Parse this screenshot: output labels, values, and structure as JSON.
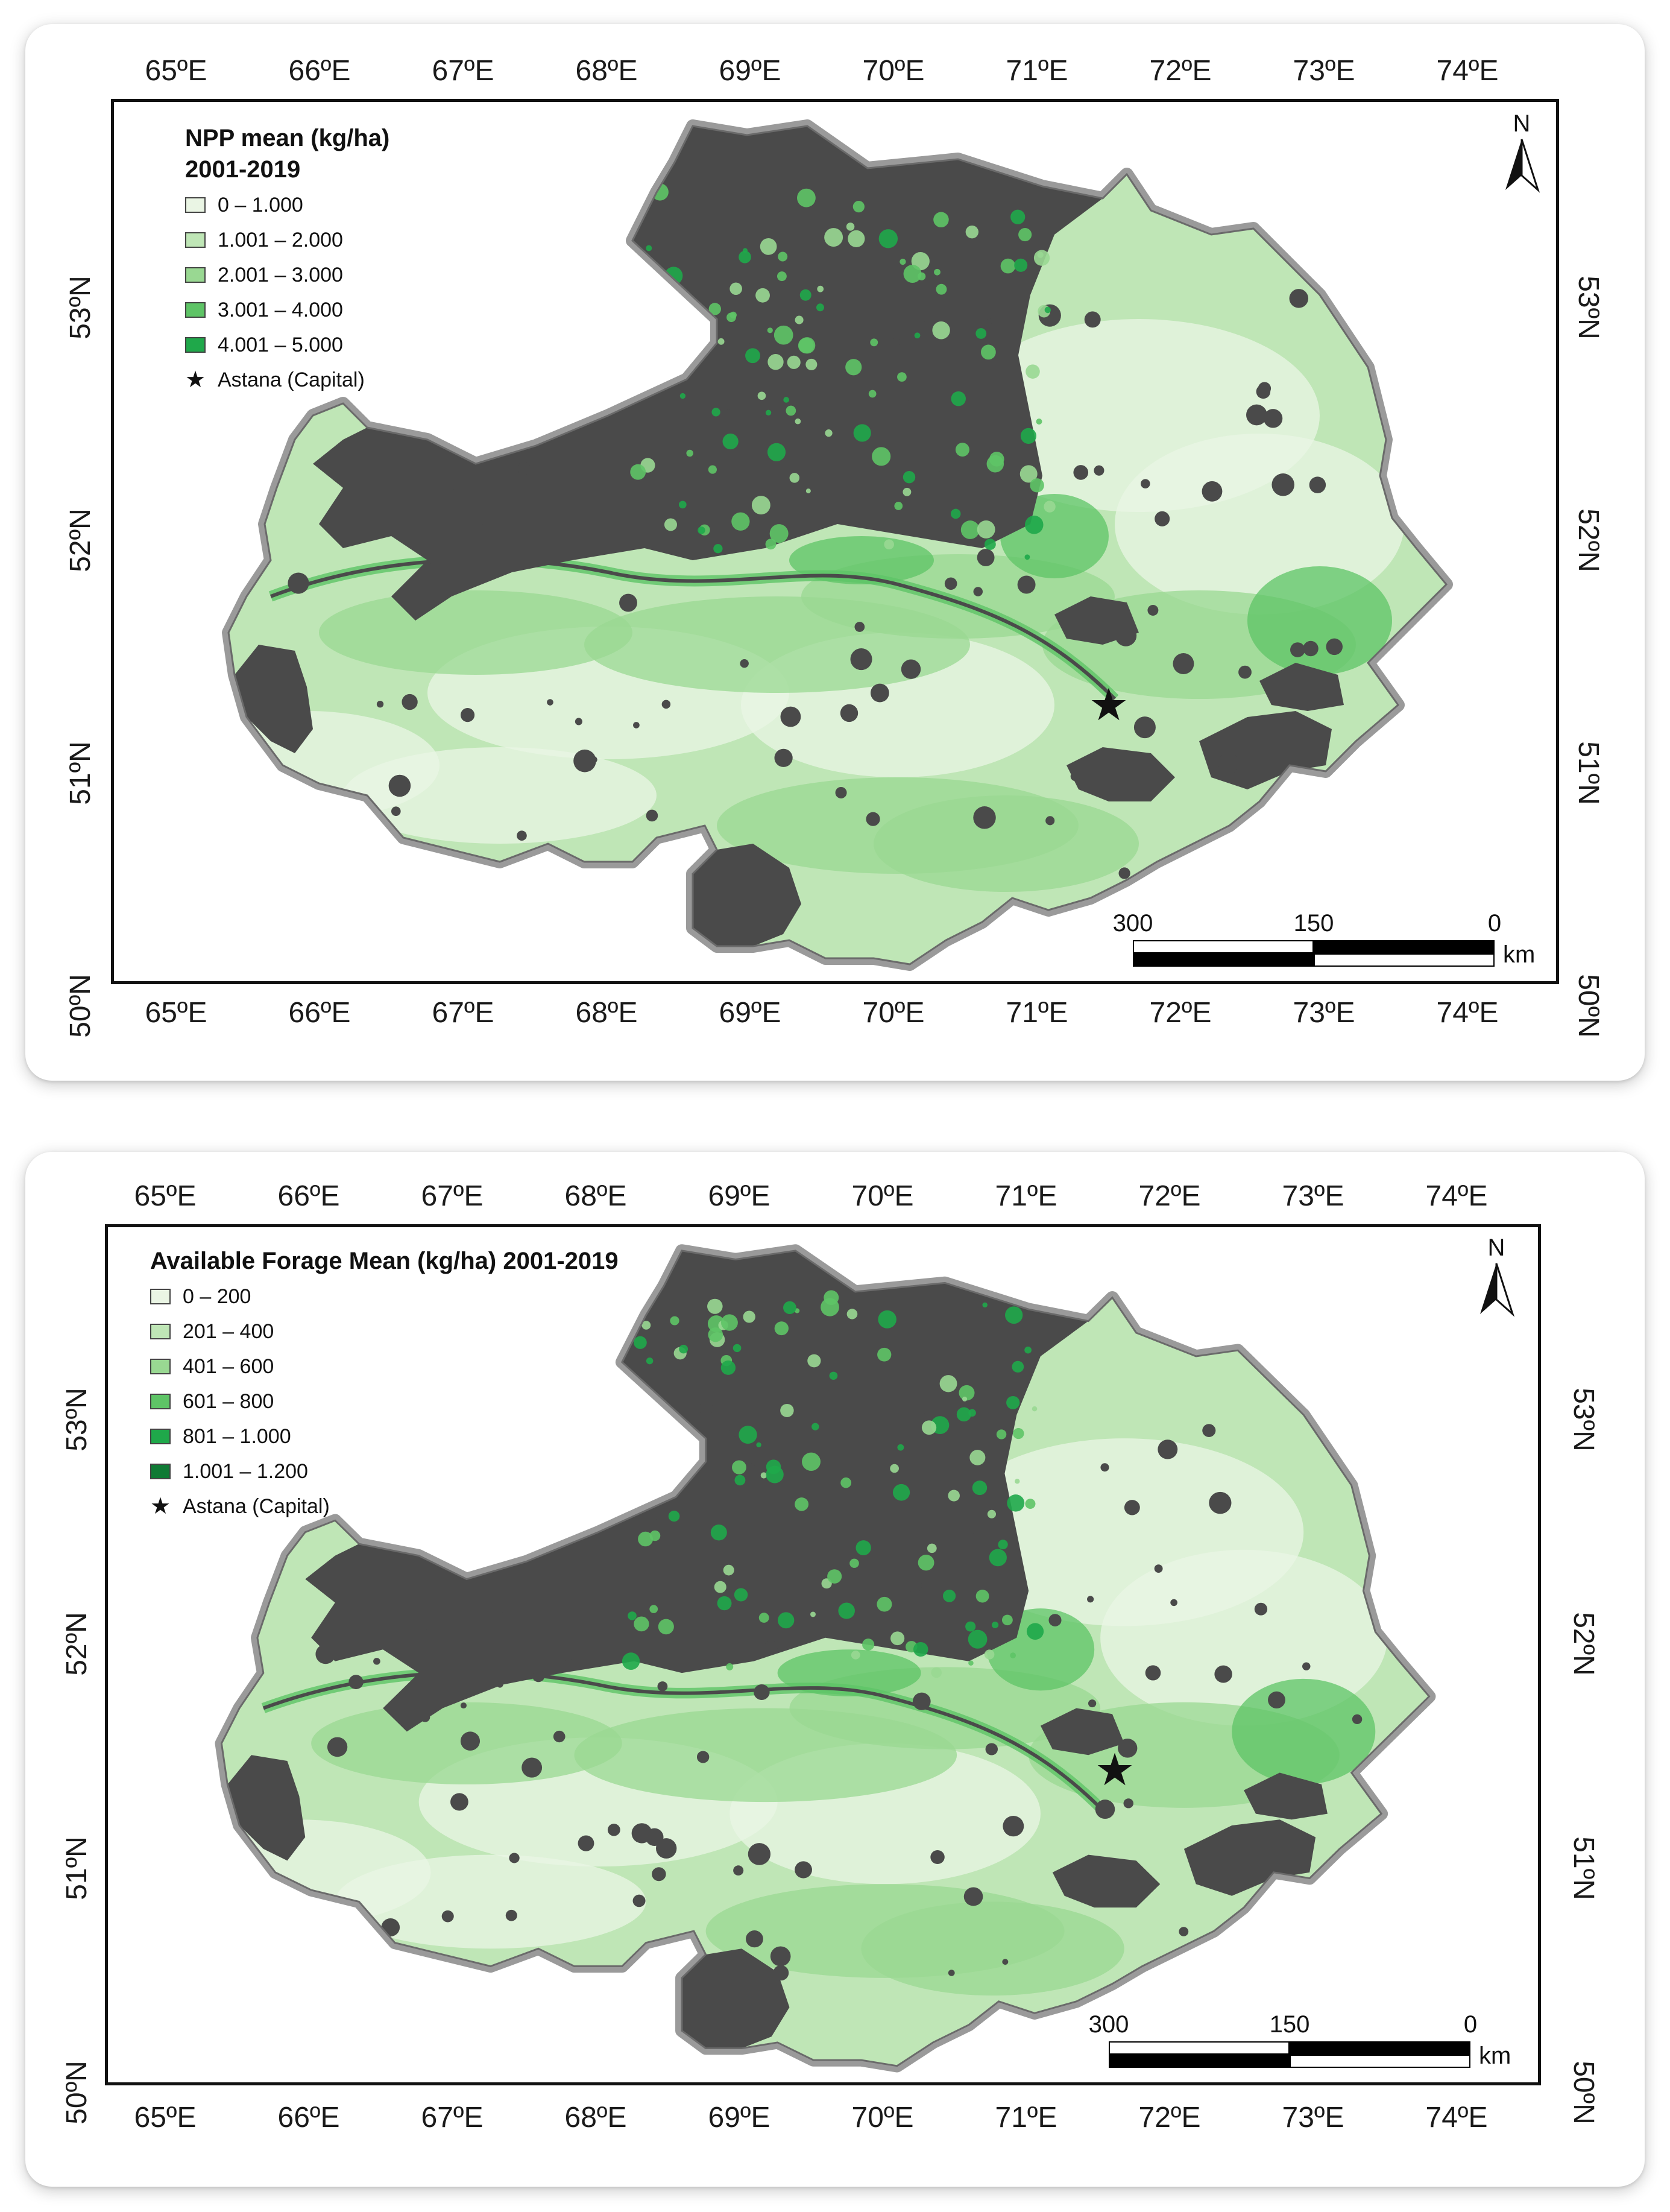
{
  "colors": {
    "masked": "#4a4a4a",
    "outline": "#9a9a9a",
    "class1": "#eaf5e4",
    "class2": "#bfe6b6",
    "class3": "#99d892",
    "class4": "#5ec466",
    "class5": "#1fa84a",
    "class6": "#0f7a34"
  },
  "longitude_labels": [
    "65ºE",
    "66ºE",
    "67ºE",
    "68ºE",
    "69ºE",
    "70ºE",
    "71ºE",
    "72ºE",
    "73ºE",
    "74ºE"
  ],
  "latitude_labels": [
    "53ºN",
    "52ºN",
    "51ºN",
    "50ºN"
  ],
  "maps": [
    {
      "legend_title_line1": "NPP mean (kg/ha)",
      "legend_title_line2": "2001-2019",
      "legend_items": [
        "0 – 1.000",
        "1.001 – 2.000",
        "2.001 – 3.000",
        "3.001 – 4.000",
        "4.001 – 5.000"
      ],
      "capital_label": "Astana (Capital)",
      "north": "N",
      "scale": {
        "left": "300",
        "mid": "150",
        "right": "0",
        "unit": "km"
      }
    },
    {
      "legend_title_line1": "Available Forage Mean (kg/ha) 2001-2019",
      "legend_items": [
        "0 – 200",
        "201 – 400",
        "401 – 600",
        "601 – 800",
        "801 – 1.000",
        "1.001 – 1.200"
      ],
      "capital_label": "Astana (Capital)",
      "north": "N",
      "scale": {
        "left": "300",
        "mid": "150",
        "right": "0",
        "unit": "km"
      }
    }
  ]
}
